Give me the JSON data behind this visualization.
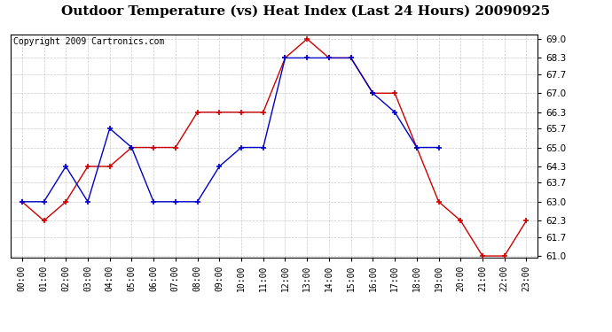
{
  "title": "Outdoor Temperature (vs) Heat Index (Last 24 Hours) 20090925",
  "copyright": "Copyright 2009 Cartronics.com",
  "hours": [
    "00:00",
    "01:00",
    "02:00",
    "03:00",
    "04:00",
    "05:00",
    "06:00",
    "07:00",
    "08:00",
    "09:00",
    "10:00",
    "11:00",
    "12:00",
    "13:00",
    "14:00",
    "15:00",
    "16:00",
    "17:00",
    "18:00",
    "19:00",
    "20:00",
    "21:00",
    "22:00",
    "23:00"
  ],
  "temp": [
    63.0,
    62.3,
    63.0,
    64.3,
    64.3,
    65.0,
    65.0,
    65.0,
    66.3,
    66.3,
    66.3,
    66.3,
    68.3,
    69.0,
    68.3,
    68.3,
    67.0,
    67.0,
    65.0,
    63.0,
    62.3,
    61.0,
    61.0,
    62.3
  ],
  "heat_index": [
    63.0,
    63.0,
    64.3,
    63.0,
    65.7,
    65.0,
    63.0,
    63.0,
    63.0,
    64.3,
    65.0,
    65.0,
    68.3,
    68.3,
    68.3,
    68.3,
    67.0,
    66.3,
    65.0,
    65.0,
    null,
    null,
    null,
    null
  ],
  "temp_color": "#cc0000",
  "heat_color": "#0000cc",
  "ylim_min": 61.0,
  "ylim_max": 69.0,
  "yticks": [
    61.0,
    61.7,
    62.3,
    63.0,
    63.7,
    64.3,
    65.0,
    65.7,
    66.3,
    67.0,
    67.7,
    68.3,
    69.0
  ],
  "bg_color": "#ffffff",
  "plot_bg_color": "#ffffff",
  "grid_color": "#bbbbbb",
  "title_fontsize": 11,
  "copyright_fontsize": 7,
  "marker_size": 4,
  "line_width": 1.0
}
